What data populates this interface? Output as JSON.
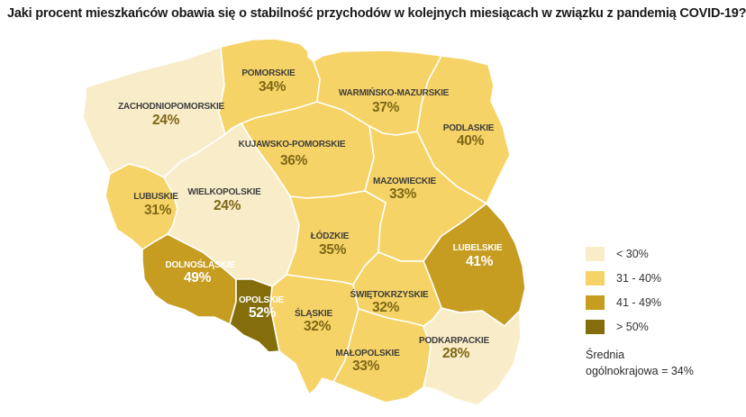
{
  "chart_data": {
    "type": "heatmap",
    "subtype": "choropleth_map_poland_voivodeships",
    "title": "Jaki procent mieszkańców obawia się o stabilność przychodów w kolejnych miesiącach w związku z pandemią COVID-19?",
    "unit": "%",
    "regions": [
      {
        "id": "zachodniopomorskie",
        "name": "ZACHODNIOPOMORSKIE",
        "value": 24,
        "label": "24%",
        "bucket": "lt30"
      },
      {
        "id": "pomorskie",
        "name": "POMORSKIE",
        "value": 34,
        "label": "34%",
        "bucket": "b31_40"
      },
      {
        "id": "warminsko_mazurskie",
        "name": "WARMIŃSKO-MAZURSKIE",
        "value": 37,
        "label": "37%",
        "bucket": "b31_40"
      },
      {
        "id": "podlaskie",
        "name": "PODLASKIE",
        "value": 40,
        "label": "40%",
        "bucket": "b31_40"
      },
      {
        "id": "kujawsko_pomorskie",
        "name": "KUJAWSKO-POMORSKIE",
        "value": 36,
        "label": "36%",
        "bucket": "b31_40"
      },
      {
        "id": "mazowieckie",
        "name": "MAZOWIECKIE",
        "value": 33,
        "label": "33%",
        "bucket": "b31_40"
      },
      {
        "id": "lubuskie",
        "name": "LUBUSKIE",
        "value": 31,
        "label": "31%",
        "bucket": "b31_40"
      },
      {
        "id": "wielkopolskie",
        "name": "WIELKOPOLSKIE",
        "value": 24,
        "label": "24%",
        "bucket": "lt30"
      },
      {
        "id": "lodzkie",
        "name": "ŁÓDZKIE",
        "value": 35,
        "label": "35%",
        "bucket": "b31_40"
      },
      {
        "id": "lubelskie",
        "name": "LUBELSKIE",
        "value": 41,
        "label": "41%",
        "bucket": "b41_49"
      },
      {
        "id": "dolnoslaskie",
        "name": "DOLNOŚLĄSKIE",
        "value": 49,
        "label": "49%",
        "bucket": "b41_49"
      },
      {
        "id": "opolskie",
        "name": "OPOLSKIE",
        "value": 52,
        "label": "52%",
        "bucket": "gt50"
      },
      {
        "id": "swietokrzyskie",
        "name": "ŚWIĘTOKRZYSKIE",
        "value": 32,
        "label": "32%",
        "bucket": "b31_40"
      },
      {
        "id": "slaskie",
        "name": "ŚLĄSKIE",
        "value": 32,
        "label": "32%",
        "bucket": "b31_40"
      },
      {
        "id": "malopolskie",
        "name": "MAŁOPOLSKIE",
        "value": 33,
        "label": "33%",
        "bucket": "b31_40"
      },
      {
        "id": "podkarpackie",
        "name": "PODKARPACKIE",
        "value": 28,
        "label": "28%",
        "bucket": "lt30"
      }
    ],
    "legend": [
      {
        "label": "< 30%",
        "bucket": "lt30",
        "color": "#f9edc9"
      },
      {
        "label": "31 - 40%",
        "bucket": "b31_40",
        "color": "#f6d366"
      },
      {
        "label": "41 - 49%",
        "bucket": "b41_49",
        "color": "#c69c21"
      },
      {
        "label": "> 50%",
        "bucket": "gt50",
        "color": "#846e0b"
      }
    ],
    "legend_position": "right",
    "national_average": 34,
    "average_note_lines": [
      "Średnia",
      "ogólnokrajowa = 34%"
    ]
  },
  "colors": {
    "background": "#ffffff",
    "region_border": "#ffffff",
    "region_name_text": "#3d3d3d",
    "percent_text": "#7e6715",
    "text_on_dark_regions": "#ffffff",
    "title_text": "#1a1a1a",
    "legend_text": "#333333"
  }
}
